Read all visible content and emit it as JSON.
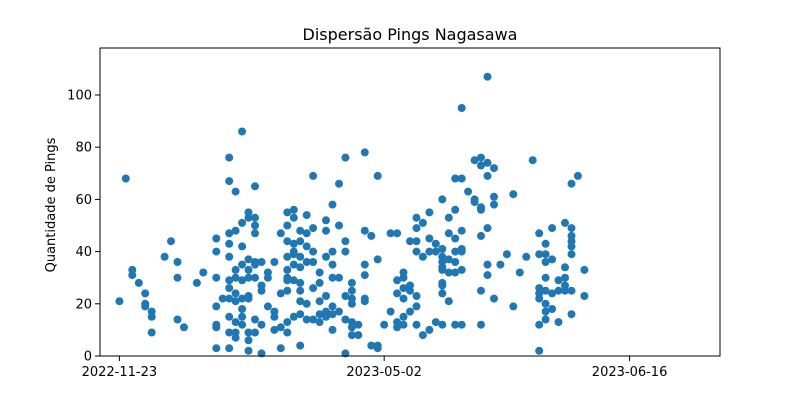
{
  "chart_data": {
    "type": "scatter",
    "title": "Dispersão Pings Nagasawa",
    "xlabel": "",
    "ylabel": "Quantidade de Pings",
    "x_tick_labels": [
      "2022-11-23",
      "2023-05-02",
      "2023-06-16"
    ],
    "x_tick_positions": [
      0,
      41,
      79
    ],
    "xlim": [
      -3,
      93
    ],
    "y_ticks": [
      0,
      20,
      40,
      60,
      80,
      100
    ],
    "ylim": [
      0,
      118
    ],
    "grid": false,
    "marker_color": "#1f77b4",
    "points": [
      [
        0,
        21
      ],
      [
        1,
        68
      ],
      [
        2,
        33
      ],
      [
        2,
        31
      ],
      [
        3,
        28
      ],
      [
        4,
        24
      ],
      [
        4,
        20
      ],
      [
        4,
        19
      ],
      [
        5,
        17
      ],
      [
        5,
        15
      ],
      [
        5,
        9
      ],
      [
        7,
        38
      ],
      [
        8,
        44
      ],
      [
        9,
        36
      ],
      [
        9,
        30
      ],
      [
        9,
        14
      ],
      [
        10,
        11
      ],
      [
        12,
        28
      ],
      [
        13,
        32
      ],
      [
        15,
        45
      ],
      [
        15,
        40
      ],
      [
        15,
        30
      ],
      [
        15,
        19
      ],
      [
        15,
        12
      ],
      [
        15,
        11
      ],
      [
        15,
        3
      ],
      [
        16,
        22
      ],
      [
        17,
        76
      ],
      [
        17,
        67
      ],
      [
        17,
        47
      ],
      [
        17,
        43
      ],
      [
        17,
        38
      ],
      [
        17,
        29
      ],
      [
        17,
        26
      ],
      [
        17,
        22
      ],
      [
        17,
        15
      ],
      [
        17,
        9
      ],
      [
        17,
        3
      ],
      [
        18,
        63
      ],
      [
        18,
        48
      ],
      [
        18,
        33
      ],
      [
        18,
        30
      ],
      [
        18,
        24
      ],
      [
        18,
        13
      ],
      [
        18,
        9
      ],
      [
        18,
        7
      ],
      [
        18,
        21
      ],
      [
        19,
        86
      ],
      [
        19,
        51
      ],
      [
        19,
        42
      ],
      [
        19,
        35
      ],
      [
        19,
        29
      ],
      [
        19,
        22
      ],
      [
        19,
        18
      ],
      [
        19,
        15
      ],
      [
        19,
        12
      ],
      [
        20,
        55
      ],
      [
        20,
        53
      ],
      [
        20,
        37
      ],
      [
        20,
        33
      ],
      [
        20,
        30
      ],
      [
        20,
        23
      ],
      [
        20,
        22
      ],
      [
        20,
        9
      ],
      [
        20,
        6
      ],
      [
        20,
        2
      ],
      [
        21,
        65
      ],
      [
        21,
        53
      ],
      [
        21,
        50
      ],
      [
        21,
        47
      ],
      [
        21,
        36
      ],
      [
        21,
        35
      ],
      [
        21,
        30
      ],
      [
        21,
        14
      ],
      [
        21,
        9
      ],
      [
        22,
        36
      ],
      [
        22,
        27
      ],
      [
        22,
        25
      ],
      [
        22,
        12
      ],
      [
        22,
        1
      ],
      [
        23,
        32
      ],
      [
        23,
        30
      ],
      [
        23,
        19
      ],
      [
        24,
        36
      ],
      [
        24,
        17
      ],
      [
        24,
        15
      ],
      [
        24,
        10
      ],
      [
        25,
        24
      ],
      [
        25,
        11
      ],
      [
        25,
        3
      ],
      [
        25,
        47
      ],
      [
        26,
        55
      ],
      [
        26,
        50
      ],
      [
        26,
        44
      ],
      [
        26,
        38
      ],
      [
        26,
        33
      ],
      [
        26,
        30
      ],
      [
        26,
        29
      ],
      [
        26,
        25
      ],
      [
        26,
        13
      ],
      [
        26,
        9
      ],
      [
        27,
        56
      ],
      [
        27,
        53
      ],
      [
        27,
        43
      ],
      [
        27,
        40
      ],
      [
        27,
        39
      ],
      [
        27,
        35
      ],
      [
        27,
        29
      ],
      [
        27,
        15
      ],
      [
        28,
        48
      ],
      [
        28,
        44
      ],
      [
        28,
        38
      ],
      [
        28,
        34
      ],
      [
        28,
        28
      ],
      [
        28,
        25
      ],
      [
        28,
        21
      ],
      [
        28,
        16
      ],
      [
        28,
        4
      ],
      [
        29,
        54
      ],
      [
        29,
        47
      ],
      [
        29,
        42
      ],
      [
        29,
        36
      ],
      [
        29,
        20
      ],
      [
        29,
        14
      ],
      [
        30,
        69
      ],
      [
        30,
        49
      ],
      [
        30,
        40
      ],
      [
        30,
        36
      ],
      [
        30,
        26
      ],
      [
        30,
        14
      ],
      [
        31,
        32
      ],
      [
        31,
        28
      ],
      [
        31,
        21
      ],
      [
        31,
        16
      ],
      [
        31,
        13
      ],
      [
        32,
        52
      ],
      [
        32,
        48
      ],
      [
        32,
        38
      ],
      [
        32,
        23
      ],
      [
        32,
        17
      ],
      [
        32,
        15
      ],
      [
        33,
        58
      ],
      [
        33,
        40
      ],
      [
        33,
        35
      ],
      [
        33,
        30
      ],
      [
        33,
        19
      ],
      [
        33,
        16
      ],
      [
        33,
        10
      ],
      [
        34,
        66
      ],
      [
        34,
        50
      ],
      [
        34,
        30
      ],
      [
        34,
        17
      ],
      [
        35,
        76
      ],
      [
        35,
        44
      ],
      [
        35,
        40
      ],
      [
        35,
        23
      ],
      [
        35,
        14
      ],
      [
        35,
        1
      ],
      [
        36,
        28
      ],
      [
        36,
        25
      ],
      [
        36,
        22
      ],
      [
        36,
        20
      ],
      [
        36,
        13
      ],
      [
        36,
        11
      ],
      [
        36,
        8
      ],
      [
        37,
        12
      ],
      [
        37,
        8
      ],
      [
        38,
        78
      ],
      [
        38,
        48
      ],
      [
        38,
        35
      ],
      [
        38,
        31
      ],
      [
        38,
        22
      ],
      [
        38,
        21
      ],
      [
        39,
        46
      ],
      [
        39,
        4
      ],
      [
        40,
        69
      ],
      [
        40,
        37
      ],
      [
        40,
        4
      ],
      [
        40,
        3
      ],
      [
        41,
        12
      ],
      [
        42,
        47
      ],
      [
        42,
        17
      ],
      [
        43,
        47
      ],
      [
        43,
        29
      ],
      [
        43,
        24
      ],
      [
        43,
        13
      ],
      [
        43,
        11
      ],
      [
        44,
        32
      ],
      [
        44,
        30
      ],
      [
        44,
        26
      ],
      [
        44,
        22
      ],
      [
        44,
        15
      ],
      [
        44,
        12
      ],
      [
        45,
        44
      ],
      [
        45,
        27
      ],
      [
        45,
        25
      ],
      [
        45,
        17
      ],
      [
        46,
        53
      ],
      [
        46,
        49
      ],
      [
        46,
        44
      ],
      [
        46,
        40
      ],
      [
        46,
        23
      ],
      [
        46,
        19
      ],
      [
        46,
        12
      ],
      [
        47,
        51
      ],
      [
        47,
        38
      ],
      [
        47,
        8
      ],
      [
        48,
        55
      ],
      [
        48,
        45
      ],
      [
        48,
        40
      ],
      [
        48,
        10
      ],
      [
        49,
        43
      ],
      [
        49,
        40
      ],
      [
        49,
        13
      ],
      [
        50,
        60
      ],
      [
        50,
        41
      ],
      [
        50,
        38
      ],
      [
        50,
        36
      ],
      [
        50,
        34
      ],
      [
        50,
        33
      ],
      [
        50,
        28
      ],
      [
        50,
        27
      ],
      [
        50,
        24
      ],
      [
        50,
        12
      ],
      [
        51,
        53
      ],
      [
        51,
        47
      ],
      [
        51,
        37
      ],
      [
        51,
        32
      ],
      [
        51,
        21
      ],
      [
        52,
        68
      ],
      [
        52,
        56
      ],
      [
        52,
        45
      ],
      [
        52,
        40
      ],
      [
        52,
        36
      ],
      [
        52,
        32
      ],
      [
        52,
        12
      ],
      [
        53,
        95
      ],
      [
        53,
        68
      ],
      [
        53,
        48
      ],
      [
        53,
        41
      ],
      [
        53,
        40
      ],
      [
        53,
        33
      ],
      [
        53,
        12
      ],
      [
        54,
        63
      ],
      [
        55,
        75
      ],
      [
        55,
        60
      ],
      [
        55,
        59
      ],
      [
        56,
        76
      ],
      [
        56,
        73
      ],
      [
        56,
        57
      ],
      [
        56,
        56
      ],
      [
        56,
        46
      ],
      [
        56,
        25
      ],
      [
        56,
        12
      ],
      [
        57,
        107
      ],
      [
        57,
        74
      ],
      [
        57,
        69
      ],
      [
        57,
        49
      ],
      [
        57,
        35
      ],
      [
        57,
        31
      ],
      [
        58,
        72
      ],
      [
        58,
        61
      ],
      [
        58,
        58
      ],
      [
        58,
        22
      ],
      [
        59,
        35
      ],
      [
        60,
        39
      ],
      [
        61,
        62
      ],
      [
        61,
        19
      ],
      [
        62,
        32
      ],
      [
        63,
        38
      ],
      [
        64,
        75
      ],
      [
        65,
        47
      ],
      [
        65,
        39
      ],
      [
        65,
        26
      ],
      [
        65,
        24
      ],
      [
        65,
        22
      ],
      [
        65,
        12
      ],
      [
        65,
        2
      ],
      [
        66,
        43
      ],
      [
        66,
        39
      ],
      [
        66,
        36
      ],
      [
        66,
        30
      ],
      [
        66,
        25
      ],
      [
        66,
        20
      ],
      [
        66,
        17
      ],
      [
        66,
        14
      ],
      [
        67,
        49
      ],
      [
        67,
        37
      ],
      [
        67,
        24
      ],
      [
        67,
        18
      ],
      [
        68,
        29
      ],
      [
        68,
        25
      ],
      [
        68,
        13
      ],
      [
        69,
        51
      ],
      [
        69,
        34
      ],
      [
        69,
        30
      ],
      [
        69,
        27
      ],
      [
        69,
        25
      ],
      [
        70,
        66
      ],
      [
        70,
        49
      ],
      [
        70,
        46
      ],
      [
        70,
        44
      ],
      [
        70,
        42
      ],
      [
        70,
        39
      ],
      [
        70,
        25
      ],
      [
        70,
        16
      ],
      [
        71,
        69
      ],
      [
        72,
        33
      ],
      [
        72,
        23
      ]
    ]
  }
}
